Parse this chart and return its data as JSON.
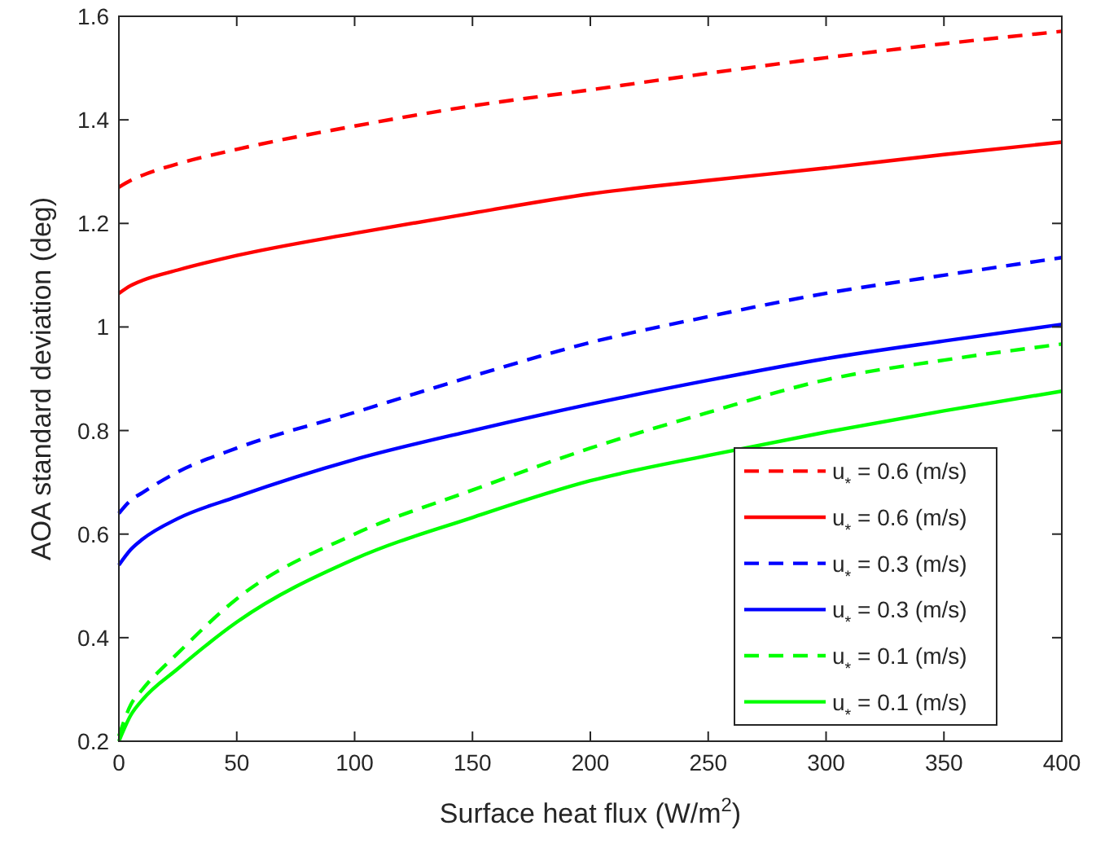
{
  "chart_data": {
    "type": "line",
    "xlabel": "Surface heat flux (W/m$^{2}$)",
    "ylabel": "AOA standard deviation (deg)",
    "x": [
      0,
      5,
      10,
      25,
      50,
      100,
      150,
      200,
      250,
      300,
      350,
      400
    ],
    "xlim": [
      0,
      400
    ],
    "xticks": [
      0,
      50,
      100,
      150,
      200,
      250,
      300,
      350,
      400
    ],
    "ylim": [
      0.2,
      1.6
    ],
    "yticks": [
      0.2,
      0.4,
      0.6,
      0.8,
      1,
      1.2,
      1.4,
      1.6
    ],
    "grid": false,
    "legend": "bottom right",
    "marker": "none",
    "series": [
      {
        "name": "u$_{*}$ = 0.6 (m/s)",
        "color": "#ff0000",
        "line_style": "dashed",
        "values": [
          1.27,
          1.283,
          1.293,
          1.315,
          1.343,
          1.388,
          1.427,
          1.458,
          1.49,
          1.52,
          1.547,
          1.571
        ]
      },
      {
        "name": "u$_{*}$ = 0.6 (m/s)",
        "color": "#ff0000",
        "line_style": "solid",
        "values": [
          1.065,
          1.08,
          1.09,
          1.11,
          1.138,
          1.181,
          1.22,
          1.257,
          1.283,
          1.307,
          1.333,
          1.357
        ]
      },
      {
        "name": "u$_{*}$ = 0.3 (m/s)",
        "color": "#0000ff",
        "line_style": "dashed",
        "values": [
          0.64,
          0.665,
          0.68,
          0.72,
          0.766,
          0.835,
          0.905,
          0.97,
          1.02,
          1.065,
          1.1,
          1.134
        ]
      },
      {
        "name": "u$_{*}$ = 0.3 (m/s)",
        "color": "#0000ff",
        "line_style": "solid",
        "values": [
          0.54,
          0.57,
          0.59,
          0.63,
          0.672,
          0.744,
          0.8,
          0.851,
          0.897,
          0.939,
          0.973,
          1.005
        ]
      },
      {
        "name": "u$_{*}$ = 0.1 (m/s)",
        "color": "#00ff00",
        "line_style": "dashed",
        "values": [
          0.21,
          0.27,
          0.3,
          0.37,
          0.475,
          0.6,
          0.685,
          0.766,
          0.835,
          0.898,
          0.936,
          0.967
        ]
      },
      {
        "name": "u$_{*}$ = 0.1 (m/s)",
        "color": "#00ff00",
        "line_style": "solid",
        "values": [
          0.2,
          0.25,
          0.28,
          0.34,
          0.43,
          0.552,
          0.632,
          0.703,
          0.752,
          0.797,
          0.838,
          0.876
        ]
      }
    ]
  }
}
